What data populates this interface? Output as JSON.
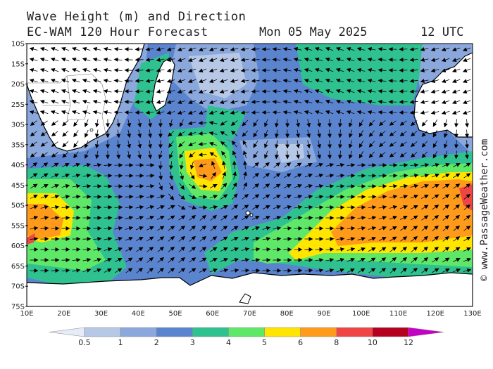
{
  "header": {
    "title_line1": "Wave Height (m) and Direction",
    "title_line2": "EC-WAM 120 Hour Forecast",
    "date": "Mon 05 May 2025",
    "time": "12 UTC"
  },
  "credit": "© www.PassageWeather.com",
  "axes": {
    "lat_labels": [
      "10S",
      "15S",
      "20S",
      "25S",
      "30S",
      "35S",
      "40S",
      "45S",
      "50S",
      "55S",
      "60S",
      "65S",
      "70S",
      "75S"
    ],
    "lon_labels": [
      "10E",
      "20E",
      "30E",
      "40E",
      "50E",
      "60E",
      "70E",
      "80E",
      "90E",
      "100E",
      "110E",
      "120E",
      "130E"
    ],
    "lon_range": [
      10,
      130
    ],
    "lat_range": [
      -10,
      -75
    ]
  },
  "legend": {
    "labels": [
      "0.5",
      "1",
      "2",
      "3",
      "4",
      "5",
      "6",
      "8",
      "10",
      "12"
    ],
    "colors": [
      "#e6ecf7",
      "#b7c8e6",
      "#8aa8dc",
      "#5b84cf",
      "#30c190",
      "#5fe868",
      "#ffe500",
      "#ff9a1a",
      "#f04545",
      "#b5001e",
      "#c600c6"
    ]
  },
  "colors": {
    "ocean_low": "#5b84cf",
    "land": "#ffffff",
    "coast": "#000000",
    "arrow": "#000000"
  }
}
